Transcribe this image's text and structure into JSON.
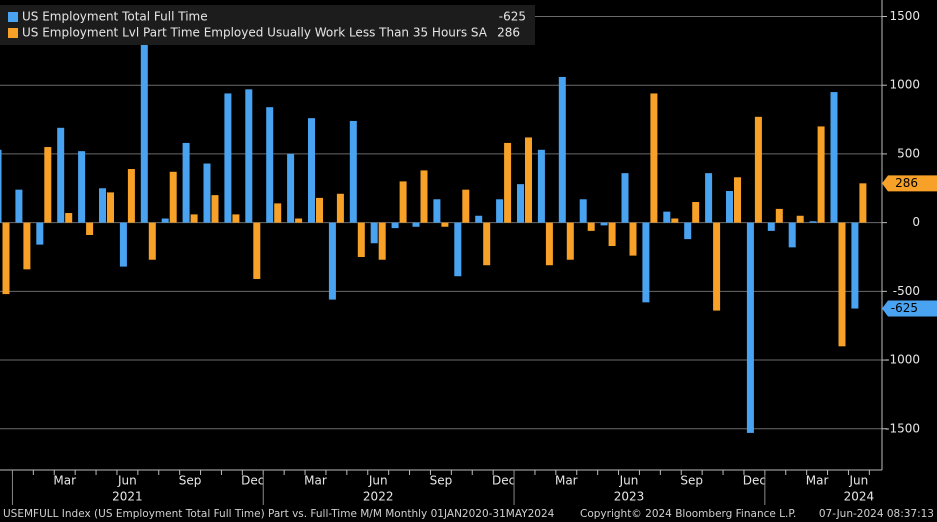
{
  "chart_data": {
    "type": "bar",
    "categories": [
      null,
      null,
      null,
      "Mar",
      null,
      null,
      "Jun",
      null,
      null,
      "Sep",
      null,
      null,
      "Dec",
      null,
      null,
      "Mar",
      null,
      null,
      "Jun",
      null,
      null,
      "Sep",
      null,
      null,
      "Dec",
      null,
      null,
      "Mar",
      null,
      null,
      "Jun",
      null,
      null,
      "Sep",
      null,
      null,
      "Dec",
      null,
      null,
      "Mar",
      null,
      "Jun"
    ],
    "years": [
      "2021",
      "2022",
      "2023",
      "2024"
    ],
    "series": [
      {
        "name": "US Employment Total Full Time",
        "color": "#4aa3f0",
        "values": [
          530,
          240,
          -160,
          690,
          520,
          250,
          -320,
          1330,
          30,
          580,
          430,
          940,
          970,
          840,
          500,
          760,
          -560,
          740,
          -150,
          -40,
          -30,
          170,
          -390,
          50,
          170,
          280,
          530,
          1060,
          170,
          -20,
          360,
          -580,
          80,
          -120,
          360,
          230,
          -1530,
          -60,
          -180,
          10,
          950,
          -625
        ]
      },
      {
        "name": "US Employment Lvl Part Time Employed Usually Work Less Than 35 Hours SA",
        "color": "#f7a128",
        "values": [
          -520,
          -340,
          550,
          70,
          -90,
          220,
          390,
          -270,
          370,
          60,
          200,
          60,
          -410,
          140,
          30,
          180,
          210,
          -250,
          -270,
          300,
          380,
          -30,
          240,
          -310,
          580,
          620,
          -310,
          -270,
          -60,
          -170,
          -240,
          940,
          30,
          150,
          -640,
          330,
          770,
          100,
          50,
          700,
          -900,
          286
        ]
      }
    ],
    "ylim": [
      -1800,
      1620
    ],
    "yticks": [
      1500,
      1000,
      500,
      0,
      -500,
      -1000,
      -1500
    ],
    "grid": true,
    "footer": {
      "description": "USEMFULL Index (US Employment Total Full Time) Part vs. Full-Time M/M  Monthly 01JAN2020-31MAY2024",
      "copyright": "Copyright© 2024 Bloomberg Finance L.P.",
      "timestamp": "07-Jun-2024 08:37:13"
    }
  }
}
